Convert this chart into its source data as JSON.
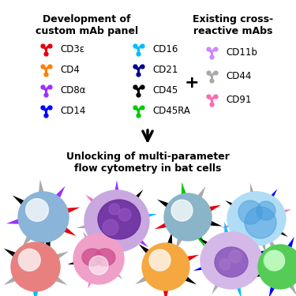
{
  "title_left": "Development of\ncustom mAb panel",
  "title_right": "Existing cross-\nreactive mAbs",
  "arrow_text": "↓",
  "bottom_title": "Unlocking of multi-parameter\nflow cytometry in bat cells",
  "left_panel": [
    {
      "color": "#e8000d",
      "label": "CD3ε"
    },
    {
      "color": "#ff7f00",
      "label": "CD4"
    },
    {
      "color": "#9b30ff",
      "label": "CD8α"
    },
    {
      "color": "#0000ff",
      "label": "CD14"
    }
  ],
  "mid_panel": [
    {
      "color": "#00bfff",
      "label": "CD16"
    },
    {
      "color": "#00008b",
      "label": "CD21"
    },
    {
      "color": "#000000",
      "label": "CD45"
    },
    {
      "color": "#00cc00",
      "label": "CD45RA"
    }
  ],
  "right_panel": [
    {
      "color": "#cc88ff",
      "label": "CD11b"
    },
    {
      "color": "#aaaaaa",
      "label": "CD44"
    },
    {
      "color": "#ff69b4",
      "label": "CD91"
    }
  ],
  "background": "#ffffff"
}
